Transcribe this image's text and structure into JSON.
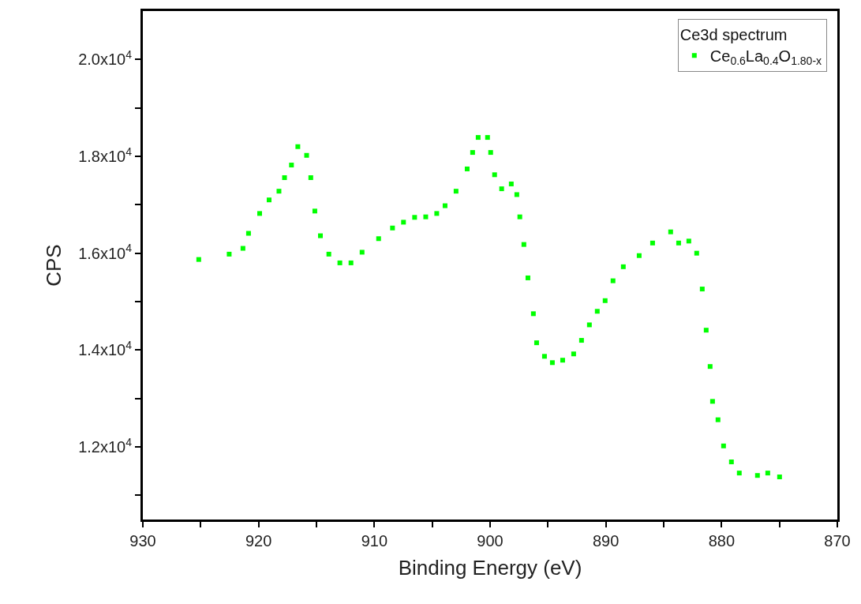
{
  "chart_data": {
    "type": "scatter",
    "xlabel": "Binding Energy (eV)",
    "ylabel": "CPS",
    "legend_title": "Ce3d spectrum",
    "x": [
      925.17,
      922.54,
      921.35,
      920.87,
      919.91,
      919.09,
      918.24,
      917.76,
      917.16,
      916.61,
      915.85,
      915.49,
      915.14,
      914.66,
      913.93,
      912.98,
      912.02,
      911.06,
      909.63,
      908.43,
      907.48,
      906.52,
      905.56,
      904.61,
      903.89,
      902.94,
      901.98,
      901.51,
      901.03,
      900.22,
      899.95,
      899.61,
      899.0,
      898.17,
      897.69,
      897.43,
      897.08,
      896.73,
      896.26,
      895.98,
      895.3,
      894.62,
      893.73,
      892.78,
      892.1,
      891.42,
      890.74,
      890.06,
      889.38,
      888.49,
      887.12,
      885.96,
      884.4,
      883.71,
      882.83,
      882.15,
      881.67,
      881.33,
      880.99,
      880.78,
      880.31,
      879.83,
      879.15,
      878.47,
      876.9,
      876.01,
      874.99
    ],
    "series": [
      {
        "name": "Ce$_{0.6}$La$_{0.4}$O$_{1.80-x}$",
        "color": "#00ff00",
        "values": [
          15870,
          15980,
          16100,
          16410,
          16820,
          17100,
          17280,
          17560,
          17820,
          18200,
          18020,
          17560,
          16870,
          16360,
          15980,
          15800,
          15800,
          16020,
          16300,
          16520,
          16640,
          16740,
          16750,
          16820,
          16980,
          17280,
          17740,
          18080,
          18390,
          18390,
          18080,
          17620,
          17330,
          17430,
          17210,
          16750,
          16180,
          15490,
          14750,
          14150,
          13870,
          13740,
          13790,
          13920,
          14200,
          14520,
          14800,
          15020,
          15430,
          15720,
          15950,
          16210,
          16440,
          16210,
          16250,
          16000,
          15260,
          14410,
          13660,
          12940,
          12560,
          12020,
          11690,
          11460,
          11410,
          11460,
          11380
        ]
      }
    ],
    "xlim": [
      930,
      870
    ],
    "xticks": [
      930,
      {
        "value": 925,
        "label": null
      },
      920,
      {
        "value": 915,
        "label": null
      },
      910,
      {
        "value": 905,
        "label": null
      },
      900,
      {
        "value": 895,
        "label": null
      },
      890,
      {
        "value": 885,
        "label": null
      },
      880,
      {
        "value": 875,
        "label": null
      },
      870
    ],
    "ylim": [
      10500,
      21000
    ],
    "yticks": [
      {
        "value": 11000,
        "label": null
      },
      {
        "value": 12000,
        "label": "1.2x10$^{4}$"
      },
      {
        "value": 13000,
        "label": null
      },
      {
        "value": 14000,
        "label": "1.4x10$^{4}$"
      },
      {
        "value": 15000,
        "label": null
      },
      {
        "value": 16000,
        "label": "1.6x10$^{4}$"
      },
      {
        "value": 17000,
        "label": null
      },
      {
        "value": 18000,
        "label": "1.8x10$^{4}$"
      },
      {
        "value": 19000,
        "label": null
      },
      {
        "value": 20000,
        "label": "2.0x10$^{4}$"
      }
    ],
    "legend": "top right",
    "marker": "square"
  }
}
